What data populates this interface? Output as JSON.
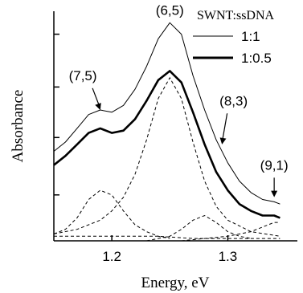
{
  "chart_data": {
    "type": "line",
    "xlabel": "Energy, eV",
    "ylabel": "Absorbance",
    "xlim": [
      1.15,
      1.36
    ],
    "ylim": [
      0,
      1.0
    ],
    "x_ticks": [
      1.2,
      1.3
    ],
    "x_tick_labels": [
      "1.2",
      "1.3"
    ],
    "y_ticks_visible_labels": false,
    "grid": false,
    "legend": {
      "title": "SWNT:ssDNA",
      "position": "top-right",
      "entries": [
        {
          "label": "1:1",
          "style": "thin-solid"
        },
        {
          "label": "1:0.5",
          "style": "thick-solid"
        }
      ]
    },
    "series": [
      {
        "name": "1:1",
        "style": "thin-solid",
        "x": [
          1.15,
          1.16,
          1.17,
          1.18,
          1.19,
          1.2,
          1.21,
          1.22,
          1.23,
          1.24,
          1.25,
          1.26,
          1.27,
          1.28,
          1.29,
          1.3,
          1.31,
          1.32,
          1.33,
          1.34,
          1.345
        ],
        "y": [
          0.39,
          0.43,
          0.49,
          0.55,
          0.57,
          0.56,
          0.59,
          0.66,
          0.76,
          0.88,
          0.95,
          0.9,
          0.72,
          0.57,
          0.44,
          0.34,
          0.26,
          0.21,
          0.18,
          0.17,
          0.16
        ]
      },
      {
        "name": "1:0.5",
        "style": "thick-solid",
        "x": [
          1.15,
          1.16,
          1.17,
          1.18,
          1.19,
          1.2,
          1.21,
          1.22,
          1.23,
          1.24,
          1.25,
          1.26,
          1.27,
          1.28,
          1.29,
          1.3,
          1.31,
          1.32,
          1.33,
          1.34,
          1.345
        ],
        "y": [
          0.33,
          0.37,
          0.42,
          0.47,
          0.49,
          0.47,
          0.48,
          0.53,
          0.61,
          0.7,
          0.74,
          0.69,
          0.56,
          0.42,
          0.3,
          0.22,
          0.16,
          0.13,
          0.11,
          0.11,
          0.1
        ]
      }
    ],
    "fit_components": [
      {
        "style": "dashed",
        "x": [
          1.15,
          1.16,
          1.17,
          1.18,
          1.19,
          1.2,
          1.21,
          1.22,
          1.23,
          1.24,
          1.25
        ],
        "y": [
          0.03,
          0.05,
          0.1,
          0.18,
          0.22,
          0.2,
          0.13,
          0.07,
          0.04,
          0.02,
          0.01
        ]
      },
      {
        "style": "dashed",
        "x": [
          1.15,
          1.17,
          1.19,
          1.2,
          1.21,
          1.22,
          1.23,
          1.24,
          1.25,
          1.26,
          1.27,
          1.28,
          1.29,
          1.3,
          1.32,
          1.345
        ],
        "y": [
          0.03,
          0.05,
          0.09,
          0.13,
          0.19,
          0.29,
          0.44,
          0.62,
          0.71,
          0.62,
          0.43,
          0.26,
          0.15,
          0.09,
          0.04,
          0.02
        ]
      },
      {
        "style": "dashed",
        "x": [
          1.23,
          1.24,
          1.25,
          1.26,
          1.27,
          1.28,
          1.29,
          1.3,
          1.31,
          1.32
        ],
        "y": [
          0.0,
          0.01,
          0.02,
          0.05,
          0.09,
          0.11,
          0.08,
          0.04,
          0.02,
          0.01
        ]
      },
      {
        "style": "dashed",
        "x": [
          1.26,
          1.28,
          1.3,
          1.32,
          1.33,
          1.34,
          1.345
        ],
        "y": [
          0.0,
          0.01,
          0.02,
          0.04,
          0.06,
          0.08,
          0.08
        ]
      },
      {
        "style": "dashed",
        "x": [
          1.15,
          1.18,
          1.21,
          1.24,
          1.27,
          1.3,
          1.33,
          1.345
        ],
        "y": [
          0.02,
          0.02,
          0.02,
          0.02,
          0.01,
          0.01,
          0.01,
          0.01
        ]
      }
    ],
    "annotations": [
      {
        "text": "(6,5)",
        "x": 1.25,
        "y": 0.985,
        "arrow": false
      },
      {
        "text": "(7,5)",
        "x": 1.175,
        "y": 0.7,
        "arrow": true,
        "arrow_to": [
          1.19,
          0.57
        ]
      },
      {
        "text": "(8,3)",
        "x": 1.305,
        "y": 0.59,
        "arrow": true,
        "arrow_to": [
          1.295,
          0.42
        ]
      },
      {
        "text": "(9,1)",
        "x": 1.34,
        "y": 0.31,
        "arrow": true,
        "arrow_to": [
          1.34,
          0.19
        ]
      }
    ]
  }
}
